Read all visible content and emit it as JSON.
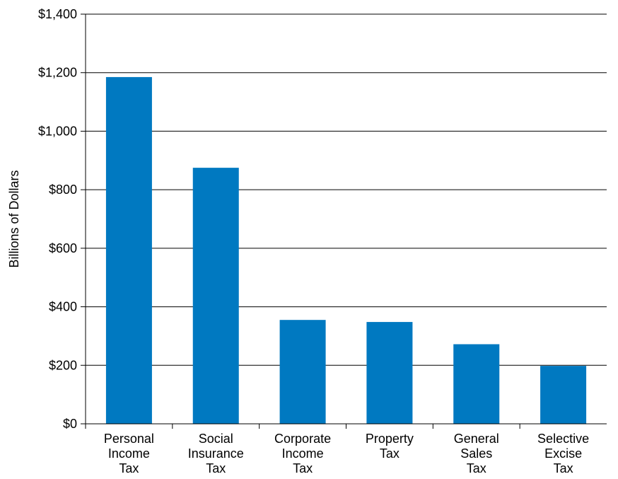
{
  "chart_data": {
    "type": "bar",
    "title": "",
    "xlabel": "",
    "ylabel": "Billions of Dollars",
    "ylim": [
      0,
      1400
    ],
    "yticks": [
      0,
      200,
      400,
      600,
      800,
      1000,
      1200,
      1400
    ],
    "ytick_labels": [
      "$0",
      "$200",
      "$400",
      "$600",
      "$800",
      "$1,000",
      "$1,200",
      "$1,400"
    ],
    "grid": "horizontal",
    "bar_color": "#0079C1",
    "categories": [
      [
        "Personal",
        "Income",
        "Tax"
      ],
      [
        "Social",
        "Insurance",
        "Tax"
      ],
      [
        "Corporate",
        "Income",
        "Tax"
      ],
      [
        "Property",
        "Tax"
      ],
      [
        "General",
        "Sales",
        "Tax"
      ],
      [
        "Selective",
        "Excise",
        "Tax"
      ]
    ],
    "values": [
      1185,
      875,
      355,
      348,
      272,
      198
    ]
  }
}
